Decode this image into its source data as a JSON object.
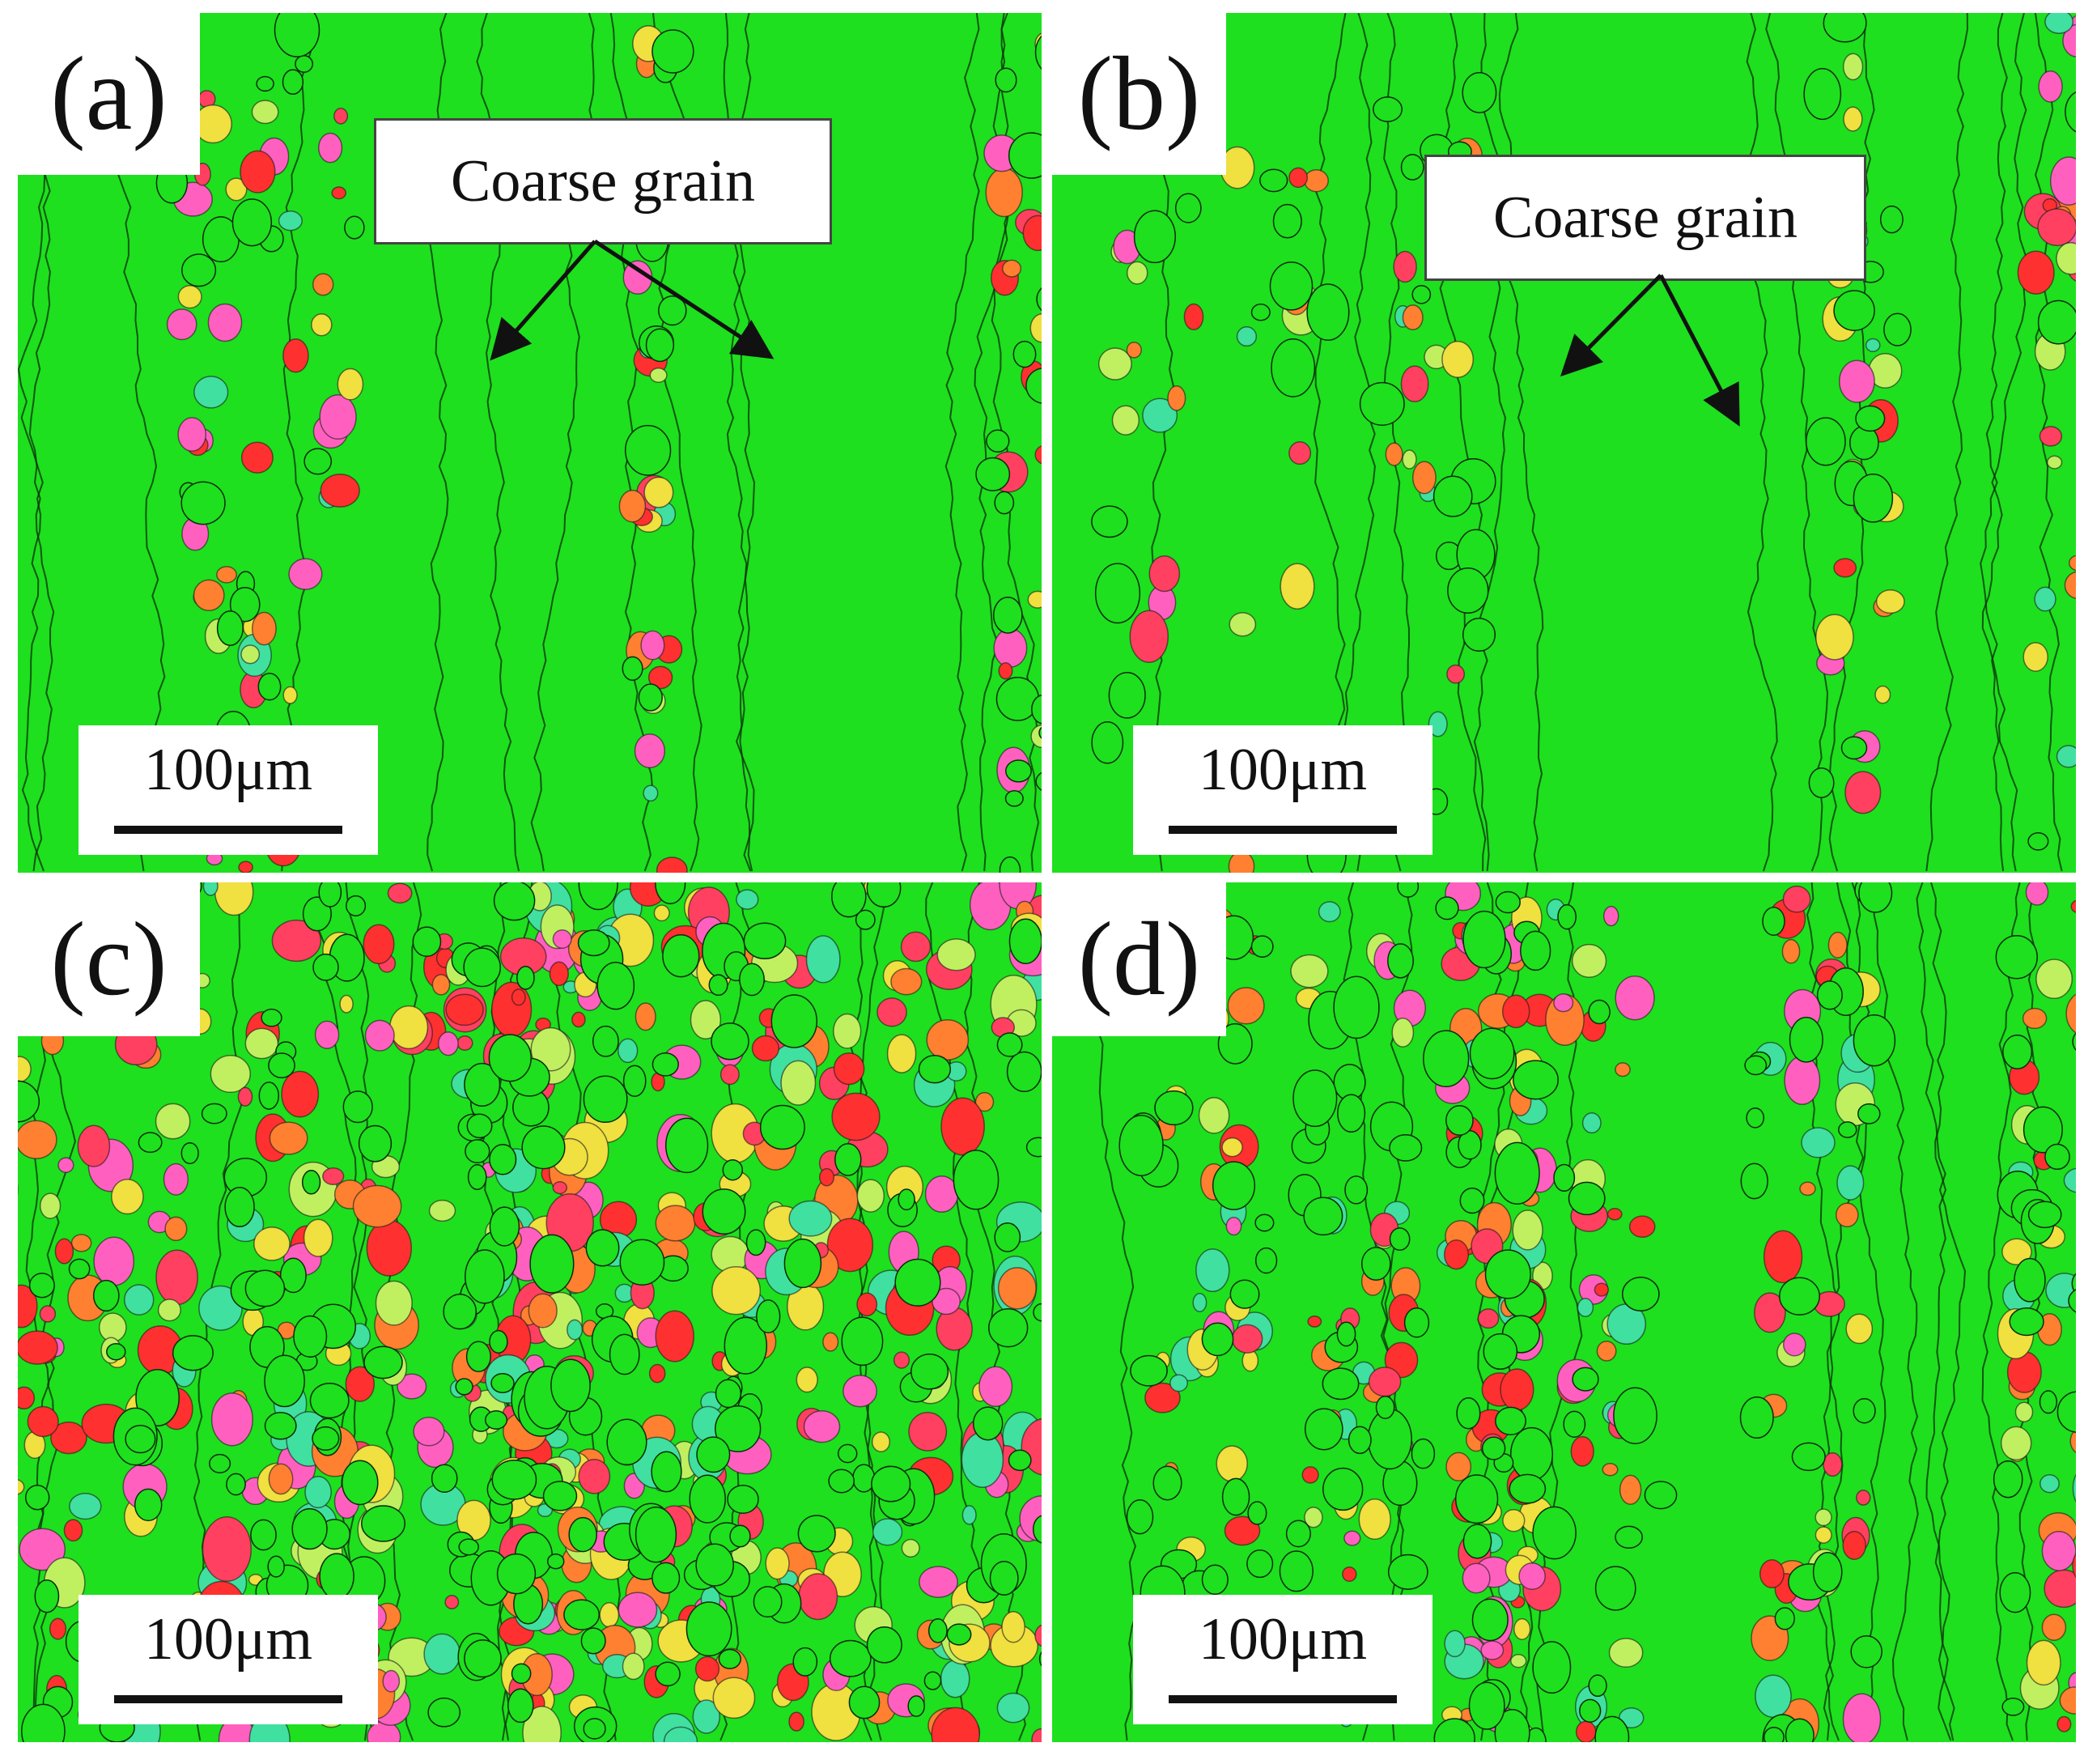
{
  "figure": {
    "panels": [
      {
        "id": "a",
        "label": "(a)",
        "scale_label": "100μm",
        "callout": "Coarse grain",
        "colors": [
          "#20e020",
          "#ff3030",
          "#ff8030",
          "#ff60c0",
          "#f0e040",
          "#40e0a0",
          "#ff4060",
          "#c0f060"
        ]
      },
      {
        "id": "b",
        "label": "(b)",
        "scale_label": "100μm",
        "callout": "Coarse grain",
        "colors": [
          "#20e020",
          "#ff3030",
          "#ff8030",
          "#ff60c0",
          "#f0e040",
          "#40e0a0",
          "#ff4060",
          "#c0f060"
        ]
      },
      {
        "id": "c",
        "label": "(c)",
        "scale_label": "100μm",
        "callout": "",
        "colors": [
          "#20e020",
          "#ff3030",
          "#ff8030",
          "#ff60c0",
          "#f0e040",
          "#40e0a0",
          "#ff4060",
          "#c0f060"
        ]
      },
      {
        "id": "d",
        "label": "(d)",
        "scale_label": "100μm",
        "callout": "",
        "colors": [
          "#20e020",
          "#ff3030",
          "#ff8030",
          "#ff60c0",
          "#f0e040",
          "#40e0a0",
          "#ff4060",
          "#c0f060"
        ]
      }
    ],
    "matrix_color": "#1ee01e",
    "boundary_color": "#0a2a0a"
  }
}
